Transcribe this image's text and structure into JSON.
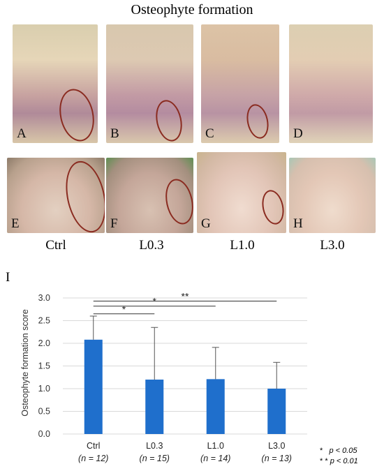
{
  "figure_title": "Osteophyte formation",
  "photo_panels": [
    {
      "letter": "A",
      "ring": true
    },
    {
      "letter": "B",
      "ring": true
    },
    {
      "letter": "C",
      "ring": true
    },
    {
      "letter": "D",
      "ring": false
    },
    {
      "letter": "E",
      "ring": true
    },
    {
      "letter": "F",
      "ring": true
    },
    {
      "letter": "G",
      "ring": true
    },
    {
      "letter": "H",
      "ring": false
    }
  ],
  "group_labels": [
    "Ctrl",
    "L0.3",
    "L1.0",
    "L3.0"
  ],
  "panel_i_label": "I",
  "colors": {
    "bar": "#1f6fcc",
    "grid": "#d9d9d9",
    "ring": "#8a2b20"
  },
  "chart_data": {
    "type": "bar",
    "ylabel": "Osteophyte formation score",
    "ylim": [
      0,
      3.0
    ],
    "yticks": [
      "0.0",
      "0.5",
      "1.0",
      "1.5",
      "2.0",
      "2.5",
      "3.0"
    ],
    "categories": [
      "Ctrl",
      "L0.3",
      "L1.0",
      "L3.0"
    ],
    "n_labels": [
      "(n = 12)",
      "(n = 15)",
      "(n = 14)",
      "(n = 13)"
    ],
    "values": [
      2.08,
      1.2,
      1.21,
      1.0
    ],
    "error_upper": [
      2.6,
      2.35,
      1.91,
      1.58
    ],
    "grid": true,
    "significance": [
      {
        "from": "Ctrl",
        "to": "L0.3",
        "label": "*"
      },
      {
        "from": "Ctrl",
        "to": "L1.0",
        "label": "*"
      },
      {
        "from": "Ctrl",
        "to": "L3.0",
        "label": "**"
      }
    ],
    "legend_notes": [
      {
        "symbol": "*",
        "text": "p < 0.05"
      },
      {
        "symbol": "* *",
        "text": "p < 0.01"
      }
    ]
  }
}
